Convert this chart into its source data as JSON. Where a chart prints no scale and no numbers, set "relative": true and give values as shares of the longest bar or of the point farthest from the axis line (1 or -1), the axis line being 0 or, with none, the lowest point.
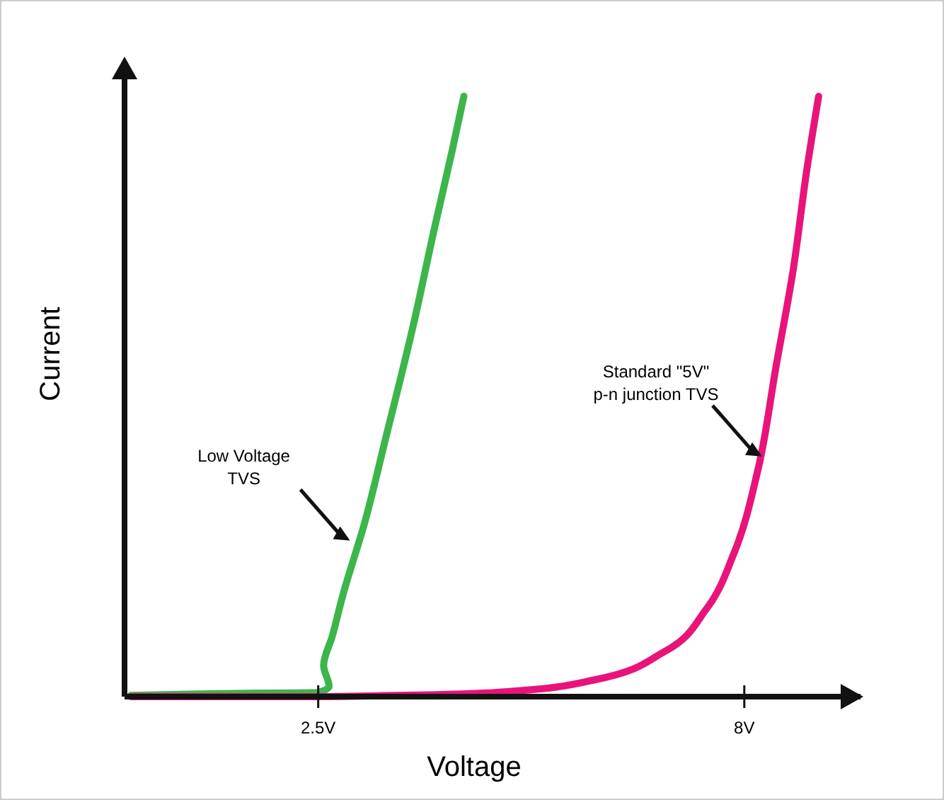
{
  "chart_data": {
    "type": "line",
    "xlabel": "Voltage",
    "ylabel": "Current",
    "relative": true,
    "xlim": [
      0,
      9.5
    ],
    "xticks": [
      {
        "value": 2.5,
        "label": "2.5V"
      },
      {
        "value": 8,
        "label": "8V"
      }
    ],
    "grid": false,
    "line_style": "solid",
    "series": [
      {
        "color": "#3cb54a",
        "x": [
          0.08,
          1.2,
          2.5,
          2.64,
          2.57,
          2.68,
          2.82,
          3.1,
          3.37,
          3.73,
          4.0,
          4.23,
          4.38
        ],
        "values": [
          0.002,
          0.005,
          0.007,
          0.017,
          0.052,
          0.1,
          0.17,
          0.29,
          0.43,
          0.62,
          0.78,
          0.91,
          1.0
        ]
      },
      {
        "color": "#e8147a",
        "x": [
          0.08,
          2.5,
          4.81,
          6.07,
          6.97,
          7.51,
          7.87,
          8.18,
          8.41,
          8.63,
          8.81,
          8.96
        ],
        "values": [
          0,
          0,
          0.007,
          0.028,
          0.075,
          0.146,
          0.24,
          0.38,
          0.55,
          0.71,
          0.88,
          1.0
        ]
      }
    ],
    "annotations": [
      {
        "text": "Low Voltage\nTVS",
        "x": 2.91,
        "y": 0.26
      },
      {
        "text": "Standard \"5V\"\np-n junction TVS",
        "x": 8.23,
        "y": 0.4
      }
    ]
  }
}
